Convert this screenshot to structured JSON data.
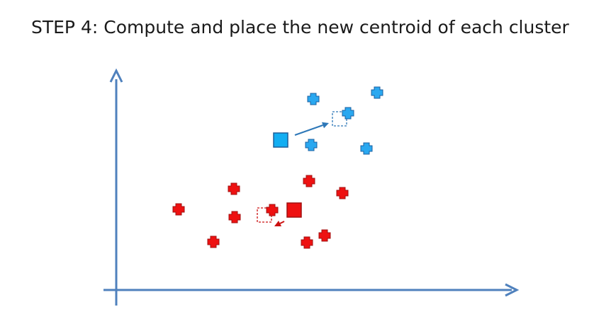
{
  "slide": {
    "title_step": "STEP 4",
    "title_rest": ": Compute and place the new centroid of each cluster"
  },
  "colors": {
    "axis": "#4f81bd",
    "blue_point": "#2aa8f0",
    "blue_point_stroke": "#1a5fa0",
    "blue_centroid": "#12aef2",
    "blue_centroid_stroke": "#1d5e99",
    "blue_arrow": "#2e78b8",
    "red_point": "#ee1111",
    "red_point_stroke": "#a01010",
    "red_centroid": "#ee1111",
    "red_centroid_stroke": "#a01010",
    "red_arrow": "#cc1111"
  },
  "clusters": [
    {
      "name": "blue",
      "points": [
        [
          442,
          140
        ],
        [
          532,
          131
        ],
        [
          491,
          160
        ],
        [
          439,
          205
        ],
        [
          517,
          210
        ]
      ],
      "old_centroid": [
        396,
        198
      ],
      "new_centroid": [
        479,
        168
      ]
    },
    {
      "name": "red",
      "points": [
        [
          330,
          267
        ],
        [
          436,
          256
        ],
        [
          483,
          273
        ],
        [
          252,
          296
        ],
        [
          331,
          307
        ],
        [
          384,
          297
        ],
        [
          301,
          342
        ],
        [
          433,
          343
        ],
        [
          458,
          333
        ]
      ],
      "old_centroid": [
        415,
        297
      ],
      "new_centroid": [
        373,
        304
      ]
    }
  ]
}
